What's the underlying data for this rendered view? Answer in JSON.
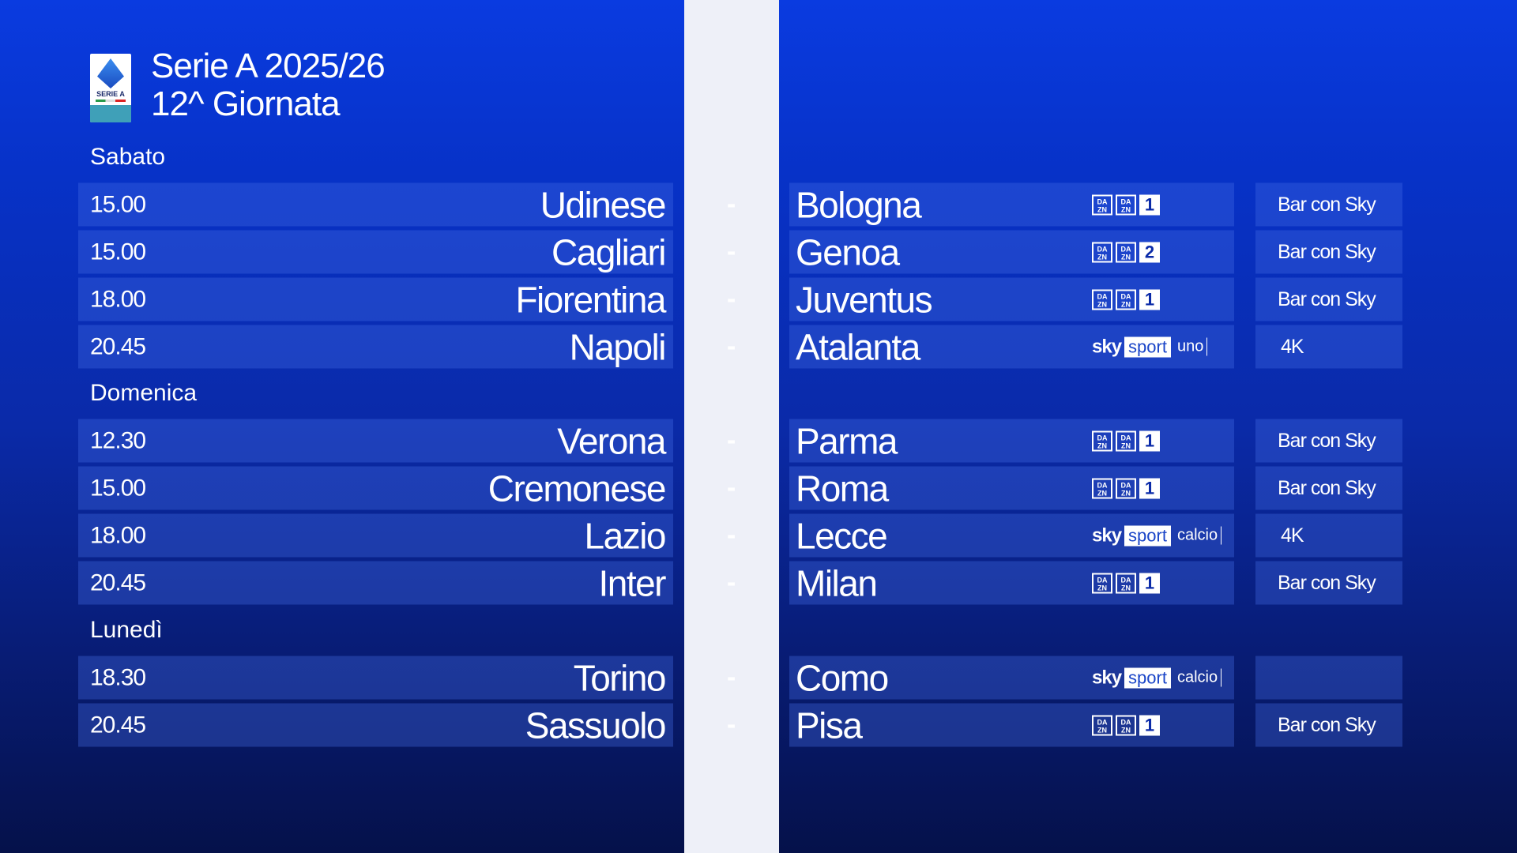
{
  "header": {
    "title_line1": "Serie A 2025/26",
    "title_line2": "12^ Giornata",
    "logo_text": "SERIE A enilive"
  },
  "colors": {
    "background_top": "#0a3be0",
    "background_bottom": "#05114a",
    "divider": "#eef0f8"
  },
  "days": [
    {
      "label": "Sabato",
      "matches": [
        {
          "time": "15.00",
          "home": "Udinese",
          "away": "Bologna",
          "channel": {
            "type": "dazn",
            "number": "1"
          },
          "status": "Bar con Sky"
        },
        {
          "time": "15.00",
          "home": "Cagliari",
          "away": "Genoa",
          "channel": {
            "type": "dazn",
            "number": "2"
          },
          "status": "Bar con Sky"
        },
        {
          "time": "18.00",
          "home": "Fiorentina",
          "away": "Juventus",
          "channel": {
            "type": "dazn",
            "number": "1"
          },
          "status": "Bar con Sky"
        },
        {
          "time": "20.45",
          "home": "Napoli",
          "away": "Atalanta",
          "channel": {
            "type": "sky",
            "name": "uno"
          },
          "status": "4K"
        }
      ]
    },
    {
      "label": "Domenica",
      "matches": [
        {
          "time": "12.30",
          "home": "Verona",
          "away": "Parma",
          "channel": {
            "type": "dazn",
            "number": "1"
          },
          "status": "Bar con Sky"
        },
        {
          "time": "15.00",
          "home": "Cremonese",
          "away": "Roma",
          "channel": {
            "type": "dazn",
            "number": "1"
          },
          "status": "Bar con Sky"
        },
        {
          "time": "18.00",
          "home": "Lazio",
          "away": "Lecce",
          "channel": {
            "type": "sky",
            "name": "calcio"
          },
          "status": "4K"
        },
        {
          "time": "20.45",
          "home": "Inter",
          "away": "Milan",
          "channel": {
            "type": "dazn",
            "number": "1"
          },
          "status": "Bar con Sky"
        }
      ]
    },
    {
      "label": "Lunedì",
      "matches": [
        {
          "time": "18.30",
          "home": "Torino",
          "away": "Como",
          "channel": {
            "type": "sky",
            "name": "calcio"
          },
          "status": ""
        },
        {
          "time": "20.45",
          "home": "Sassuolo",
          "away": "Pisa",
          "channel": {
            "type": "dazn",
            "number": "1"
          },
          "status": "Bar con Sky"
        }
      ]
    }
  ],
  "labels": {
    "separator": "-",
    "dazn": "DA ZN",
    "sky": "sky",
    "sport": "sport"
  }
}
